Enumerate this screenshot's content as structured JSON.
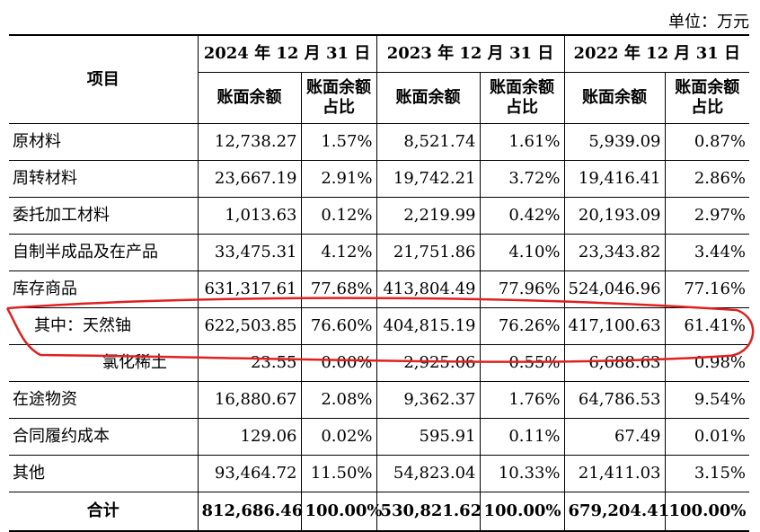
{
  "unit": "单位：万元",
  "header": {
    "item": "项目",
    "periods": [
      "2024 年 12 月 31 日",
      "2023 年 12 月 31 日",
      "2022 年 12 月 31 日"
    ],
    "balance": "账面余额",
    "ratio": "账面余额占比"
  },
  "rows": [
    {
      "name": "原材料",
      "v": [
        "12,738.27",
        "1.57%",
        "8,521.74",
        "1.61%",
        "5,939.09",
        "0.87%"
      ]
    },
    {
      "name": "周转材料",
      "v": [
        "23,667.19",
        "2.91%",
        "19,742.21",
        "3.72%",
        "19,416.41",
        "2.86%"
      ]
    },
    {
      "name": "委托加工材料",
      "v": [
        "1,013.63",
        "0.12%",
        "2,219.99",
        "0.42%",
        "20,193.09",
        "2.97%"
      ]
    },
    {
      "name": "自制半成品及在产品",
      "v": [
        "33,475.31",
        "4.12%",
        "21,751.86",
        "4.10%",
        "23,343.82",
        "3.44%"
      ]
    },
    {
      "name": "库存商品",
      "v": [
        "631,317.61",
        "77.68%",
        "413,804.49",
        "77.96%",
        "524,046.96",
        "77.16%"
      ]
    },
    {
      "name": "其中：天然铀",
      "v": [
        "622,503.85",
        "76.60%",
        "404,815.19",
        "76.26%",
        "417,100.63",
        "61.41%"
      ]
    },
    {
      "name": "氯化稀土",
      "v": [
        "23.55",
        "0.00%",
        "2,925.06",
        "0.55%",
        "6,688.63",
        "0.98%"
      ]
    },
    {
      "name": "在途物资",
      "v": [
        "16,880.67",
        "2.08%",
        "9,362.37",
        "1.76%",
        "64,786.53",
        "9.54%"
      ]
    },
    {
      "name": "合同履约成本",
      "v": [
        "129.06",
        "0.02%",
        "595.91",
        "0.11%",
        "67.49",
        "0.01%"
      ]
    },
    {
      "name": "其他",
      "v": [
        "93,464.72",
        "11.50%",
        "54,823.04",
        "10.33%",
        "21,411.03",
        "3.15%"
      ]
    }
  ],
  "total": {
    "name": "合计",
    "v": [
      "812,686.46",
      "100.00%",
      "530,821.62",
      "100.00%",
      "679,204.41",
      "100.00%"
    ]
  },
  "annotation_color": "#e02020"
}
